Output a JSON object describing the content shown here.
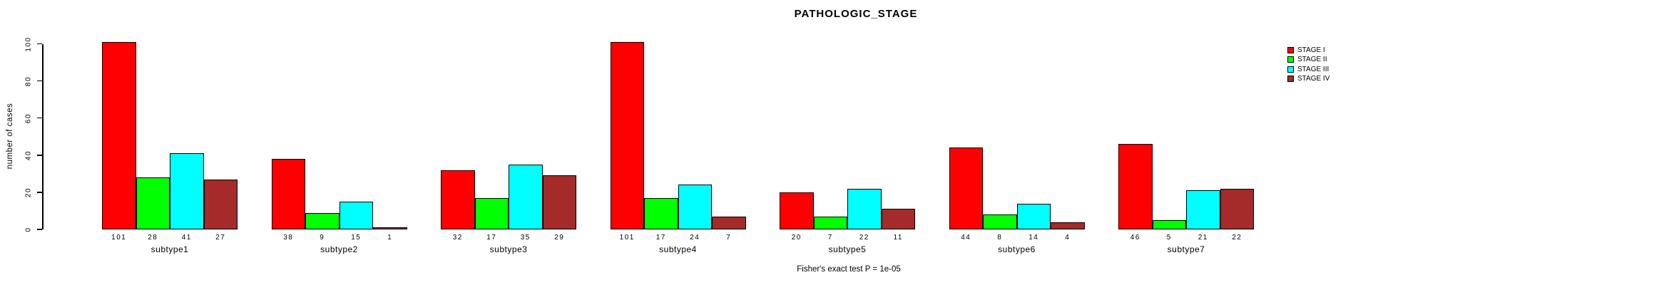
{
  "title": "PATHOLOGIC_STAGE",
  "footer": "Fisher's exact test P = 1e-05",
  "chart_data": {
    "type": "bar",
    "title": "PATHOLOGIC_STAGE",
    "xlabel": "",
    "ylabel": "number of cases",
    "ylim": [
      0,
      100
    ],
    "yticks": [
      0,
      20,
      40,
      60,
      80,
      100
    ],
    "grid": false,
    "bar_value_labels_shown": true,
    "legend_position": "right",
    "annotation": "Fisher's exact test P = 1e-05",
    "categories": [
      "subtype1",
      "subtype2",
      "subtype3",
      "subtype4",
      "subtype5",
      "subtype6",
      "subtype7"
    ],
    "series": [
      {
        "name": "STAGE I",
        "color": "#FF0000",
        "values": [
          101,
          38,
          32,
          101,
          20,
          44,
          46
        ]
      },
      {
        "name": "STAGE II",
        "color": "#00FF00",
        "values": [
          28,
          9,
          17,
          17,
          7,
          8,
          5
        ]
      },
      {
        "name": "STAGE III",
        "color": "#00FFFF",
        "values": [
          41,
          15,
          35,
          24,
          22,
          14,
          21
        ]
      },
      {
        "name": "STAGE IV",
        "color": "#A52A2A",
        "values": [
          27,
          1,
          29,
          7,
          11,
          4,
          22
        ]
      }
    ]
  }
}
